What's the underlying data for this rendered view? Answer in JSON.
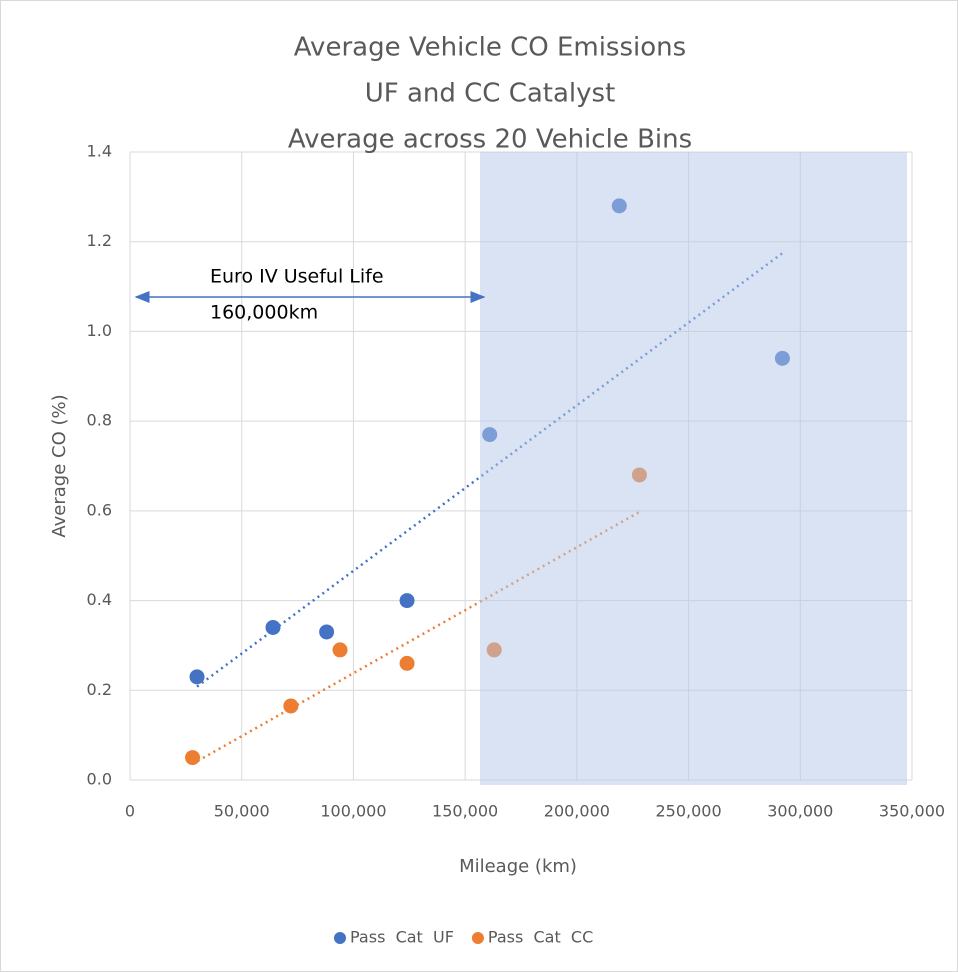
{
  "chart_data": {
    "type": "scatter",
    "title": [
      "Average Vehicle CO Emissions",
      "UF and CC Catalyst",
      "Average across 20 Vehicle Bins"
    ],
    "xlabel": "Mileage (km)",
    "ylabel": "Average CO (%)",
    "annotation": [
      "Euro IV Useful Life",
      "160,000km"
    ],
    "series": [
      {
        "name": "Pass  Cat  UF",
        "color": "#4472c4",
        "trendline": true,
        "x": [
          30000,
          64000,
          88000,
          124000,
          161000,
          219000,
          292000
        ],
        "values": [
          0.23,
          0.34,
          0.33,
          0.4,
          0.77,
          1.28,
          0.94
        ]
      },
      {
        "name": "Pass  Cat  CC",
        "color": "#ed7d31",
        "trendline": true,
        "x": [
          28000,
          72000,
          94000,
          124000,
          163000,
          228000
        ],
        "values": [
          0.05,
          0.165,
          0.29,
          0.26,
          0.29,
          0.68
        ]
      }
    ],
    "xlim": [
      0,
      350000
    ],
    "xticks": [
      0,
      {
        "value": 50000,
        "label": "50,000"
      },
      {
        "value": 100000,
        "label": "100,000"
      },
      {
        "value": 150000,
        "label": "150,000"
      },
      {
        "value": 200000,
        "label": "200,000"
      },
      {
        "value": 250000,
        "label": "250,000"
      },
      {
        "value": 300000,
        "label": "300,000"
      },
      {
        "value": 350000,
        "label": "350,000"
      }
    ],
    "ylim": [
      0,
      1.4
    ],
    "yticks": [
      {
        "value": 0,
        "label": "0.0"
      },
      0.2,
      0.4,
      0.6,
      0.8,
      {
        "value": 1,
        "label": "1.0"
      },
      1.2,
      1.4
    ],
    "grid": true,
    "legend": "bottom"
  }
}
